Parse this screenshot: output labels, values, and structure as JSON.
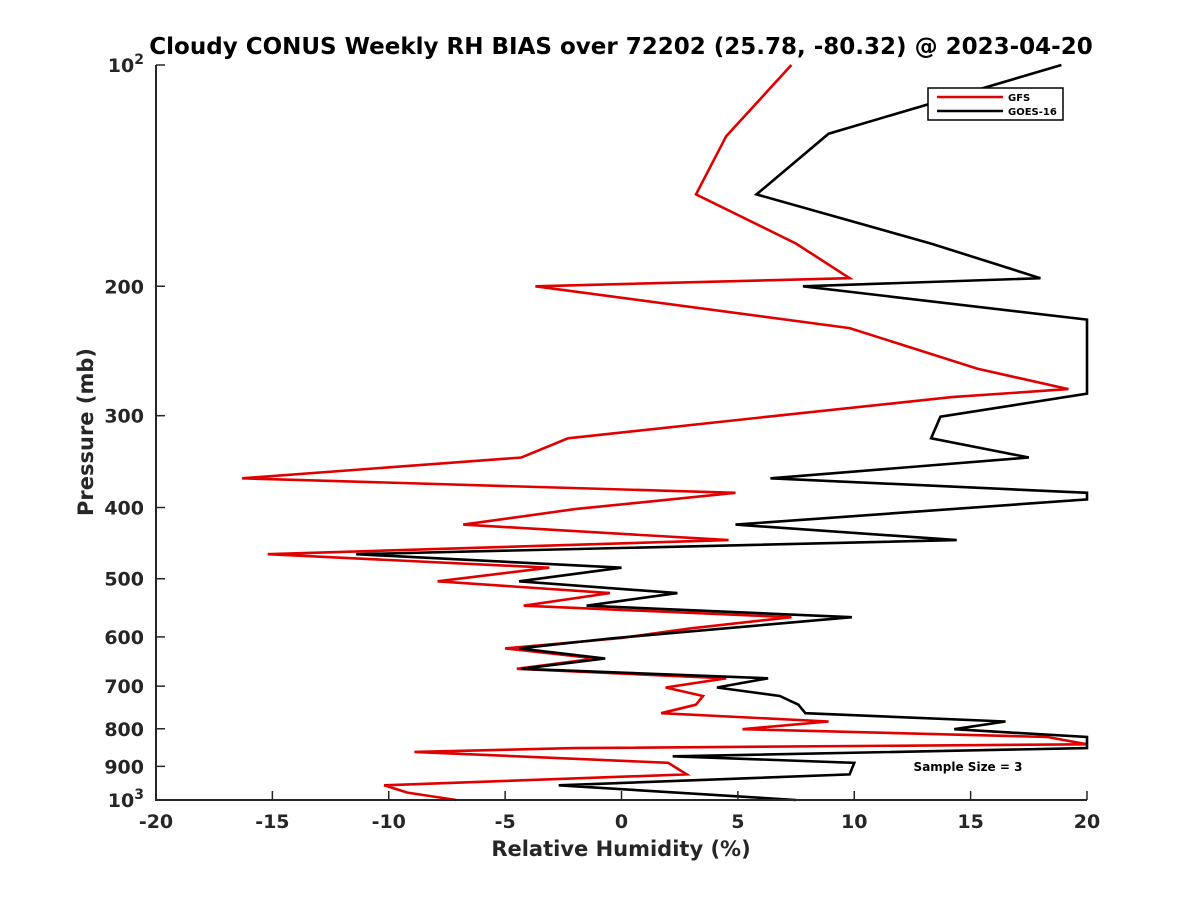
{
  "chart_data": {
    "type": "line",
    "title": "Cloudy CONUS Weekly RH BIAS over 72202 (25.78, -80.32) @ 2023-04-20",
    "xlabel": "Relative Humidity (%)",
    "ylabel": "Pressure (mb)",
    "xlim": [
      -20,
      20
    ],
    "ylim": [
      100,
      1000
    ],
    "y_scale": "log",
    "y_reversed": true,
    "x_ticks": [
      "-20",
      "-15",
      "-10",
      "-5",
      "0",
      "5",
      "10",
      "15",
      "20"
    ],
    "y_ticks": [
      {
        "value": 100,
        "base": "10",
        "exp": "2"
      },
      {
        "value": 200,
        "label": "200"
      },
      {
        "value": 300,
        "label": "300"
      },
      {
        "value": 400,
        "label": "400"
      },
      {
        "value": 500,
        "label": "500"
      },
      {
        "value": 600,
        "label": "600"
      },
      {
        "value": 700,
        "label": "700"
      },
      {
        "value": 800,
        "label": "800"
      },
      {
        "value": 900,
        "label": "900"
      },
      {
        "value": 1000,
        "base": "10",
        "exp": "3"
      }
    ],
    "grid": false,
    "legend_position": "top-right",
    "annotation": "Sample Size = 3",
    "series": [
      {
        "name": "GFS",
        "color": "#e00000",
        "points": [
          [
            7.3,
            100
          ],
          [
            4.5,
            125
          ],
          [
            3.2,
            150
          ],
          [
            7.5,
            175
          ],
          [
            9.8,
            195
          ],
          [
            -3.7,
            200
          ],
          [
            9.8,
            228
          ],
          [
            15.3,
            259
          ],
          [
            19.2,
            276
          ],
          [
            14.2,
            283
          ],
          [
            6.7,
            300
          ],
          [
            -2.3,
            322
          ],
          [
            -4.3,
            342
          ],
          [
            -16.3,
            365
          ],
          [
            4.9,
            382
          ],
          [
            -2.0,
            402
          ],
          [
            -6.8,
            422
          ],
          [
            4.6,
            443
          ],
          [
            -15.2,
            463
          ],
          [
            -3.1,
            483
          ],
          [
            -7.9,
            504
          ],
          [
            -0.5,
            523
          ],
          [
            -4.2,
            544
          ],
          [
            7.3,
            564
          ],
          [
            3.0,
            584
          ],
          [
            0,
            602
          ],
          [
            -5.0,
            622
          ],
          [
            -1.1,
            642
          ],
          [
            -4.5,
            663
          ],
          [
            4.5,
            683
          ],
          [
            1.9,
            703
          ],
          [
            3.5,
            722
          ],
          [
            3.2,
            742
          ],
          [
            1.7,
            762
          ],
          [
            8.9,
            782
          ],
          [
            5.2,
            801
          ],
          [
            18.3,
            821
          ],
          [
            20.0,
            840
          ],
          [
            -2.0,
            850
          ],
          [
            -8.9,
            860
          ],
          [
            2.0,
            890
          ],
          [
            2.8,
            923
          ],
          [
            -10.2,
            955
          ],
          [
            -9.2,
            977
          ],
          [
            -7.1,
            1000
          ]
        ]
      },
      {
        "name": "GOES-16",
        "color": "#000000",
        "points": [
          [
            18.9,
            100
          ],
          [
            8.9,
            124
          ],
          [
            5.8,
            150
          ],
          [
            13.3,
            175
          ],
          [
            18.0,
            195
          ],
          [
            7.8,
            200
          ],
          [
            20.0,
            222
          ],
          [
            20.0,
            280
          ],
          [
            13.7,
            301
          ],
          [
            13.3,
            322
          ],
          [
            17.5,
            342
          ],
          [
            6.4,
            365
          ],
          [
            20.0,
            382
          ],
          [
            20.0,
            390
          ],
          [
            4.9,
            422
          ],
          [
            14.4,
            443
          ],
          [
            -11.4,
            463
          ],
          [
            0,
            483
          ],
          [
            -4.4,
            504
          ],
          [
            2.4,
            523
          ],
          [
            -1.5,
            544
          ],
          [
            9.9,
            564
          ],
          [
            -0.5,
            603
          ],
          [
            -4.4,
            622
          ],
          [
            -0.7,
            642
          ],
          [
            -4.3,
            663
          ],
          [
            6.3,
            683
          ],
          [
            4.1,
            703
          ],
          [
            6.8,
            722
          ],
          [
            7.6,
            742
          ],
          [
            7.9,
            762
          ],
          [
            16.5,
            782
          ],
          [
            14.3,
            801
          ],
          [
            20.0,
            821
          ],
          [
            20.0,
            850
          ],
          [
            2.2,
            872
          ],
          [
            10.0,
            890
          ],
          [
            9.8,
            923
          ],
          [
            -2.7,
            955
          ],
          [
            7.5,
            1000
          ]
        ]
      }
    ]
  }
}
